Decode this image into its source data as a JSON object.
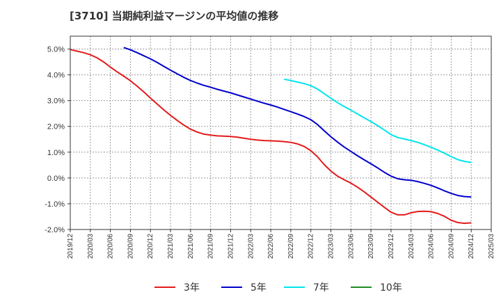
{
  "title": "[3710]  当期純利益マージンの平均値の推移",
  "chart_data": {
    "type": "line",
    "title": "[3710]  当期純利益マージンの平均値の推移",
    "xlabel": "",
    "ylabel": "",
    "ylim": [
      -2.0,
      5.5
    ],
    "xlim": [
      "2019-12",
      "2025-03"
    ],
    "grid": true,
    "legend_position": "bottom",
    "yticks": [
      "5.0%",
      "4.0%",
      "3.0%",
      "2.0%",
      "1.0%",
      "0.0%",
      "-1.0%",
      "-2.0%"
    ],
    "ytick_values": [
      5,
      4,
      3,
      2,
      1,
      0,
      -1,
      -2
    ],
    "xticks": [
      "2019/12",
      "2020/03",
      "2020/06",
      "2020/09",
      "2020/12",
      "2021/03",
      "2021/06",
      "2021/09",
      "2021/12",
      "2022/03",
      "2022/06",
      "2022/09",
      "2022/12",
      "2023/03",
      "2023/06",
      "2023/09",
      "2023/12",
      "2024/03",
      "2024/06",
      "2024/09",
      "2024/12",
      "2025/03"
    ],
    "series": [
      {
        "name": "3年",
        "color": "#e41a1c",
        "points": [
          [
            "2019-12",
            4.98
          ],
          [
            "2020-01",
            4.92
          ],
          [
            "2020-02",
            4.86
          ],
          [
            "2020-03",
            4.78
          ],
          [
            "2020-04",
            4.66
          ],
          [
            "2020-05",
            4.5
          ],
          [
            "2020-06",
            4.3
          ],
          [
            "2020-07",
            4.12
          ],
          [
            "2020-08",
            3.95
          ],
          [
            "2020-09",
            3.77
          ],
          [
            "2020-10",
            3.56
          ],
          [
            "2020-11",
            3.34
          ],
          [
            "2020-12",
            3.1
          ],
          [
            "2021-01",
            2.87
          ],
          [
            "2021-02",
            2.64
          ],
          [
            "2021-03",
            2.43
          ],
          [
            "2021-04",
            2.23
          ],
          [
            "2021-05",
            2.05
          ],
          [
            "2021-06",
            1.89
          ],
          [
            "2021-07",
            1.78
          ],
          [
            "2021-08",
            1.7
          ],
          [
            "2021-09",
            1.66
          ],
          [
            "2021-10",
            1.63
          ],
          [
            "2021-11",
            1.62
          ],
          [
            "2021-12",
            1.61
          ],
          [
            "2022-01",
            1.58
          ],
          [
            "2022-02",
            1.54
          ],
          [
            "2022-03",
            1.5
          ],
          [
            "2022-04",
            1.47
          ],
          [
            "2022-05",
            1.45
          ],
          [
            "2022-06",
            1.44
          ],
          [
            "2022-07",
            1.43
          ],
          [
            "2022-08",
            1.41
          ],
          [
            "2022-09",
            1.38
          ],
          [
            "2022-10",
            1.32
          ],
          [
            "2022-11",
            1.22
          ],
          [
            "2022-12",
            1.06
          ],
          [
            "2023-01",
            0.82
          ],
          [
            "2023-02",
            0.52
          ],
          [
            "2023-03",
            0.27
          ],
          [
            "2023-04",
            0.07
          ],
          [
            "2023-05",
            -0.07
          ],
          [
            "2023-06",
            -0.2
          ],
          [
            "2023-07",
            -0.36
          ],
          [
            "2023-08",
            -0.54
          ],
          [
            "2023-09",
            -0.74
          ],
          [
            "2023-10",
            -0.94
          ],
          [
            "2023-11",
            -1.14
          ],
          [
            "2023-12",
            -1.33
          ],
          [
            "2024-01",
            -1.43
          ],
          [
            "2024-02",
            -1.43
          ],
          [
            "2024-03",
            -1.35
          ],
          [
            "2024-04",
            -1.3
          ],
          [
            "2024-05",
            -1.29
          ],
          [
            "2024-06",
            -1.31
          ],
          [
            "2024-07",
            -1.38
          ],
          [
            "2024-08",
            -1.49
          ],
          [
            "2024-09",
            -1.64
          ],
          [
            "2024-10",
            -1.73
          ],
          [
            "2024-11",
            -1.76
          ],
          [
            "2024-12",
            -1.74
          ]
        ]
      },
      {
        "name": "5年",
        "color": "#0000cd",
        "points": [
          [
            "2020-08",
            5.06
          ],
          [
            "2020-09",
            4.97
          ],
          [
            "2020-10",
            4.86
          ],
          [
            "2020-11",
            4.74
          ],
          [
            "2020-12",
            4.62
          ],
          [
            "2021-01",
            4.48
          ],
          [
            "2021-02",
            4.33
          ],
          [
            "2021-03",
            4.18
          ],
          [
            "2021-04",
            4.04
          ],
          [
            "2021-05",
            3.9
          ],
          [
            "2021-06",
            3.78
          ],
          [
            "2021-07",
            3.68
          ],
          [
            "2021-08",
            3.59
          ],
          [
            "2021-09",
            3.52
          ],
          [
            "2021-10",
            3.44
          ],
          [
            "2021-11",
            3.37
          ],
          [
            "2021-12",
            3.3
          ],
          [
            "2022-01",
            3.22
          ],
          [
            "2022-02",
            3.14
          ],
          [
            "2022-03",
            3.06
          ],
          [
            "2022-04",
            2.98
          ],
          [
            "2022-05",
            2.9
          ],
          [
            "2022-06",
            2.83
          ],
          [
            "2022-07",
            2.75
          ],
          [
            "2022-08",
            2.66
          ],
          [
            "2022-09",
            2.57
          ],
          [
            "2022-10",
            2.48
          ],
          [
            "2022-11",
            2.38
          ],
          [
            "2022-12",
            2.26
          ],
          [
            "2023-01",
            2.07
          ],
          [
            "2023-02",
            1.83
          ],
          [
            "2023-03",
            1.6
          ],
          [
            "2023-04",
            1.39
          ],
          [
            "2023-05",
            1.2
          ],
          [
            "2023-06",
            1.03
          ],
          [
            "2023-07",
            0.86
          ],
          [
            "2023-08",
            0.7
          ],
          [
            "2023-09",
            0.55
          ],
          [
            "2023-10",
            0.39
          ],
          [
            "2023-11",
            0.22
          ],
          [
            "2023-12",
            0.07
          ],
          [
            "2024-01",
            -0.03
          ],
          [
            "2024-02",
            -0.07
          ],
          [
            "2024-03",
            -0.09
          ],
          [
            "2024-04",
            -0.14
          ],
          [
            "2024-05",
            -0.21
          ],
          [
            "2024-06",
            -0.29
          ],
          [
            "2024-07",
            -0.39
          ],
          [
            "2024-08",
            -0.5
          ],
          [
            "2024-09",
            -0.6
          ],
          [
            "2024-10",
            -0.68
          ],
          [
            "2024-11",
            -0.72
          ],
          [
            "2024-12",
            -0.74
          ]
        ]
      },
      {
        "name": "7年",
        "color": "#00e5ee",
        "points": [
          [
            "2022-08",
            3.83
          ],
          [
            "2022-09",
            3.78
          ],
          [
            "2022-10",
            3.72
          ],
          [
            "2022-11",
            3.66
          ],
          [
            "2022-12",
            3.58
          ],
          [
            "2023-01",
            3.45
          ],
          [
            "2023-02",
            3.27
          ],
          [
            "2023-03",
            3.09
          ],
          [
            "2023-04",
            2.92
          ],
          [
            "2023-05",
            2.77
          ],
          [
            "2023-06",
            2.63
          ],
          [
            "2023-07",
            2.48
          ],
          [
            "2023-08",
            2.33
          ],
          [
            "2023-09",
            2.19
          ],
          [
            "2023-10",
            2.03
          ],
          [
            "2023-11",
            1.86
          ],
          [
            "2023-12",
            1.68
          ],
          [
            "2024-01",
            1.57
          ],
          [
            "2024-02",
            1.51
          ],
          [
            "2024-03",
            1.45
          ],
          [
            "2024-04",
            1.38
          ],
          [
            "2024-05",
            1.29
          ],
          [
            "2024-06",
            1.19
          ],
          [
            "2024-07",
            1.08
          ],
          [
            "2024-08",
            0.96
          ],
          [
            "2024-09",
            0.83
          ],
          [
            "2024-10",
            0.71
          ],
          [
            "2024-11",
            0.64
          ],
          [
            "2024-12",
            0.6
          ]
        ]
      },
      {
        "name": "10年",
        "color": "#228b22",
        "points": []
      }
    ]
  }
}
